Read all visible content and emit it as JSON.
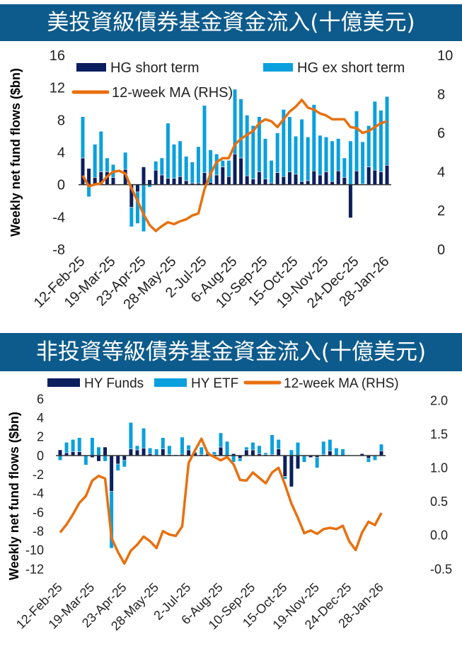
{
  "colors": {
    "title_bg": "#0d5b8c",
    "dark": "#0b1f5e",
    "light": "#0aa0de",
    "line": "#e8700f"
  },
  "chart_data": [
    {
      "type": "bar",
      "title": "美投資級債券基金資金流入(十億美元)",
      "ylabel": "Weekly net fund flows ($bn)",
      "ylim": [
        -8,
        16
      ],
      "yticks": [
        "16",
        "12",
        "8",
        "4",
        "0",
        "-4",
        "-8"
      ],
      "y2lim": [
        0,
        10
      ],
      "y2ticks": [
        "10",
        "8",
        "6",
        "4",
        "2",
        "0"
      ],
      "xticks": [
        "12-Feb-25",
        "19-Mar-25",
        "23-Apr-25",
        "28-May-25",
        "2-Jul-25",
        "6-Aug-25",
        "10-Sep-25",
        "15-Oct-25",
        "19-Nov-25",
        "24-Dec-25",
        "28-Jan-26"
      ],
      "stacked": true,
      "legend": "top",
      "series": [
        {
          "name": "HG short term",
          "kind": "bar",
          "values": [
            3.3,
            2.0,
            0.9,
            1.6,
            1.6,
            0.9,
            0,
            1.9,
            -2.8,
            -0.9,
            2.2,
            0.6,
            1.8,
            1.2,
            0.8,
            0.8,
            1.0,
            0.5,
            0.2,
            0.2,
            1.5,
            0.3,
            1.2,
            2.2,
            1.0,
            3.8,
            3.3,
            1.1,
            0.7,
            1.6,
            0.7,
            0.2,
            1.5,
            1.0,
            1.6,
            1.3,
            0.4,
            0.5,
            1.7,
            1.2,
            1.6,
            0.4,
            1.7,
            0.9,
            -4.1,
            1.7,
            0.1,
            2.2,
            1.8,
            1.6,
            2.4
          ]
        },
        {
          "name": "HG ex short term",
          "kind": "bar",
          "values": [
            5.1,
            -1.5,
            4.1,
            5.0,
            1.7,
            1.6,
            0,
            2.1,
            -2.4,
            -3.9,
            -5.8,
            -0.3,
            1.1,
            2.1,
            6.8,
            4.2,
            4.4,
            3.0,
            2.6,
            4.5,
            8.3,
            4.0,
            2.6,
            0.8,
            2.0,
            8.0,
            7.3,
            7.5,
            6.6,
            6.8,
            5.0,
            2.8,
            4.9,
            8.3,
            6.8,
            4.7,
            7.7,
            5.4,
            8.2,
            4.9,
            4.3,
            5.0,
            4.0,
            2.4,
            5.4,
            7.4,
            5.2,
            5.1,
            8.5,
            7.6,
            8.5
          ]
        },
        {
          "name": "12-week MA (RHS)",
          "kind": "line",
          "axis": "right",
          "values": [
            3.8,
            3.25,
            3.35,
            3.4,
            3.75,
            4.0,
            4.05,
            3.9,
            3.15,
            2.5,
            1.8,
            1.25,
            0.95,
            1.2,
            1.4,
            1.3,
            1.45,
            1.55,
            1.75,
            1.85,
            3.1,
            3.9,
            4.5,
            4.7,
            4.7,
            5.4,
            5.7,
            5.9,
            6.1,
            6.5,
            6.7,
            6.6,
            6.3,
            6.7,
            7.1,
            7.35,
            7.7,
            7.3,
            7.2,
            7.0,
            6.9,
            6.7,
            6.7,
            6.7,
            6.3,
            6.25,
            6.0,
            6.1,
            6.3,
            6.5,
            6.6
          ]
        }
      ]
    },
    {
      "type": "bar",
      "title": "非投資等級債券基金資金流入(十億美元)",
      "ylabel": "Weekly net fund flows ($bn)",
      "ylim": [
        -12,
        6
      ],
      "yticks": [
        "6",
        "4",
        "2",
        "0",
        "-2",
        "-4",
        "-6",
        "-8",
        "-10",
        "-12"
      ],
      "y2lim": [
        -0.5,
        2.0
      ],
      "y2ticks": [
        "2.0",
        "1.5",
        "1.0",
        "0.5",
        "0.0",
        "-0.5"
      ],
      "xticks": [
        "12-Feb-25",
        "19-Mar-25",
        "23-Apr-25",
        "28-May-25",
        "2-Jul-25",
        "6-Aug-25",
        "10-Sep-25",
        "15-Oct-25",
        "19-Nov-25",
        "24-Dec-25",
        "28-Jan-26"
      ],
      "stacked": true,
      "legend": "top",
      "series": [
        {
          "name": "HY Funds",
          "kind": "bar",
          "values": [
            0.6,
            0.3,
            0.4,
            0.4,
            0,
            -0.2,
            -0.6,
            0.9,
            -3.8,
            -0.9,
            -0.5,
            0.7,
            0.6,
            0.8,
            0.2,
            0,
            0.7,
            0.1,
            0,
            0.15,
            0.6,
            0.3,
            0.1,
            0.3,
            0.1,
            0.9,
            0,
            0.2,
            -0.3,
            0.6,
            0.6,
            0.2,
            0.1,
            0.1,
            0.7,
            -2.2,
            -3.3,
            -1.4,
            0,
            -0.2,
            -0.2,
            0.1,
            0.5,
            0,
            0,
            0,
            0,
            0.2,
            -0.3,
            0,
            0.5
          ]
        },
        {
          "name": "HY ETF",
          "kind": "bar",
          "values": [
            -0.5,
            1.1,
            1.3,
            1.5,
            -1.0,
            1.9,
            0.9,
            -0.6,
            -6.0,
            -0.7,
            -0.7,
            2.8,
            0.45,
            2.1,
            0.6,
            0.7,
            1.2,
            0.95,
            0.1,
            1.8,
            0.5,
            0.1,
            0.8,
            0.1,
            0.3,
            1.5,
            1.5,
            -0.7,
            -0.3,
            0.3,
            0.8,
            0.85,
            0.2,
            2.1,
            1.0,
            -0.3,
            0.6,
            1.4,
            -0.7,
            0,
            -1.1,
            1.4,
            1.2,
            0.8,
            0.7,
            0,
            0,
            0,
            -0.4,
            -0.5,
            0.7
          ]
        },
        {
          "name": "12-week MA (RHS)",
          "kind": "line",
          "axis": "right",
          "values": [
            0.04,
            0.16,
            0.31,
            0.48,
            0.58,
            0.81,
            0.88,
            0.84,
            -0.04,
            -0.25,
            -0.42,
            -0.23,
            -0.14,
            -0.02,
            -0.09,
            -0.19,
            0.06,
            0.01,
            -0.01,
            0.13,
            1.07,
            1.26,
            1.43,
            1.21,
            1.16,
            1.11,
            1.16,
            1.05,
            0.82,
            0.81,
            0.93,
            0.85,
            0.77,
            0.93,
            1.0,
            0.75,
            0.47,
            0.26,
            0.03,
            0.07,
            0.02,
            0.09,
            0.11,
            0.09,
            0.14,
            -0.09,
            -0.22,
            0.04,
            0.2,
            0.15,
            0.33
          ]
        }
      ]
    }
  ]
}
